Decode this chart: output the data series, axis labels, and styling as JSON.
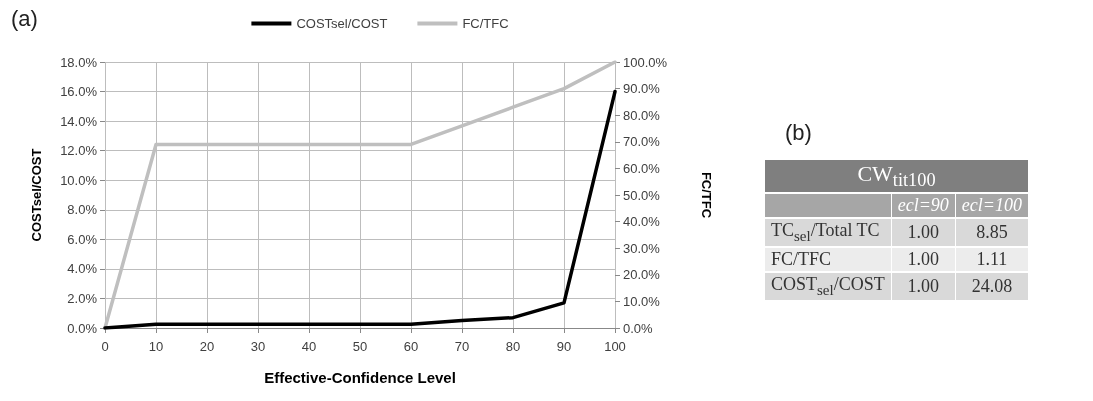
{
  "chart_data": [
    {
      "type": "line",
      "title": "(a)",
      "xlabel": "Effective-Confidence Level",
      "ylabel": "COSTsel/COST",
      "y2label": "FC/TFC",
      "x": [
        0,
        10,
        20,
        30,
        40,
        50,
        60,
        70,
        80,
        90,
        100
      ],
      "series": [
        {
          "name": "COSTsel/COST",
          "color": "#000000",
          "values": [
            0,
            0.25,
            0.25,
            0.25,
            0.25,
            0.25,
            0.25,
            0.5,
            0.7,
            1.7,
            16
          ]
        },
        {
          "name": "FC/TFC",
          "color": "#bfbfbf",
          "axis": "y2",
          "values": [
            0,
            69,
            69,
            69,
            69,
            69,
            69,
            76,
            83,
            90,
            100
          ]
        }
      ],
      "xlim": [
        0,
        100
      ],
      "xticks": [
        0,
        10,
        20,
        30,
        40,
        50,
        60,
        70,
        80,
        90,
        100
      ],
      "ylim": [
        0,
        18
      ],
      "yticks": [
        {
          "value": 0,
          "label": "0.0%"
        },
        {
          "value": 2,
          "label": "2.0%"
        },
        {
          "value": 4,
          "label": "4.0%"
        },
        {
          "value": 6,
          "label": "6.0%"
        },
        {
          "value": 8,
          "label": "8.0%"
        },
        {
          "value": 10,
          "label": "10.0%"
        },
        {
          "value": 12,
          "label": "12.0%"
        },
        {
          "value": 14,
          "label": "14.0%"
        },
        {
          "value": 16,
          "label": "16.0%"
        },
        {
          "value": 18,
          "label": "18.0%"
        }
      ],
      "y2lim": [
        0,
        100
      ],
      "y2ticks": [
        {
          "value": 0,
          "label": "0.0%"
        },
        {
          "value": 10,
          "label": "10.0%"
        },
        {
          "value": 20,
          "label": "20.0%"
        },
        {
          "value": 30,
          "label": "30.0%"
        },
        {
          "value": 40,
          "label": "40.0%"
        },
        {
          "value": 50,
          "label": "50.0%"
        },
        {
          "value": 60,
          "label": "60.0%"
        },
        {
          "value": 70,
          "label": "70.0%"
        },
        {
          "value": 80,
          "label": "80.0%"
        },
        {
          "value": 90,
          "label": "90.0%"
        },
        {
          "value": 100,
          "label": "100.0%"
        }
      ],
      "grid": true,
      "legend": "top",
      "marker": "none",
      "line_style": "solid"
    },
    {
      "type": "other",
      "title": "(b)",
      "subtitle": "CW$_{tit100}$",
      "categories": [
        "ecl=90",
        "ecl=100"
      ],
      "y_categories": [
        "TC$_{sel}$/Total TC",
        "FC/TFC",
        "COST$_{sel}$/COST"
      ],
      "cell_labels": [
        [
          "1.00",
          "8.85"
        ],
        [
          "1.00",
          "1.11"
        ],
        [
          "1.00",
          "24.08"
        ]
      ]
    }
  ]
}
